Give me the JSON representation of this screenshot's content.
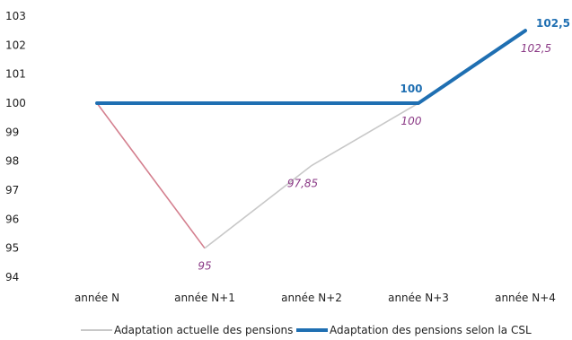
{
  "chart_data": {
    "type": "line",
    "title": "",
    "xlabel": "",
    "ylabel": "",
    "categories": [
      "année N",
      "année N+1",
      "année N+2",
      "année N+3",
      "année N+4"
    ],
    "ylim": [
      94,
      103
    ],
    "yticks": [
      94,
      95,
      96,
      97,
      98,
      99,
      100,
      101,
      102,
      103
    ],
    "grid": false,
    "legend_position": "bottom",
    "series": [
      {
        "name": "Adaptation actuelle des pensions",
        "values": [
          100,
          95,
          97.85,
          100,
          102.5
        ],
        "color": "#c8c8c8",
        "segment_colors": [
          "#d4808f",
          "#c8c8c8",
          "#c8c8c8",
          "#c8c8c8"
        ],
        "labels": [
          null,
          "95",
          "97,85",
          "100",
          "102,5"
        ],
        "label_color": "#8b3a86"
      },
      {
        "name": "Adaptation des pensions selon la CSL",
        "values": [
          100,
          100,
          100,
          100,
          102.5
        ],
        "color": "#1f6fb2",
        "labels": [
          null,
          null,
          null,
          "100",
          "102,5"
        ],
        "label_color": "#1f6fb2"
      }
    ]
  }
}
